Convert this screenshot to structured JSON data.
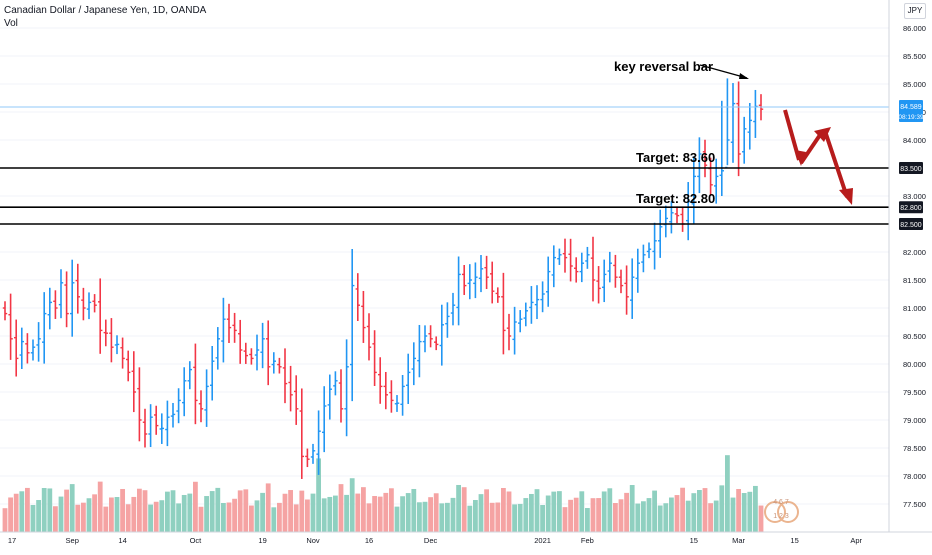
{
  "header": {
    "title": "Canadian Dollar / Japanese Yen, 1D, OANDA",
    "volume_label": "Vol",
    "currency_badge": "JPY"
  },
  "annotations": {
    "reversal_text": "key reversal bar",
    "target1_text": "Target: 83.60",
    "target2_text": "Target: 82.80"
  },
  "price_tag": {
    "price": "84.589",
    "countdown": "08:19:39"
  },
  "levels": [
    {
      "price": "83.500",
      "value": 83.5
    },
    {
      "price": "82.800",
      "value": 82.8
    },
    {
      "price": "82.500",
      "value": 82.5
    }
  ],
  "watermark": "4 6 7 1 2 3",
  "colors": {
    "up": "#2196f3",
    "down": "#f23645",
    "vol_up": "#8fd0c0",
    "vol_down": "#f5a3a3",
    "arrow": "#b71c1c",
    "level_line": "#000000",
    "last_price_line": "#90caf9"
  },
  "chart_data": {
    "type": "ohlc",
    "title": "Canadian Dollar / Japanese Yen, 1D, OANDA",
    "y_ticks": [
      77.5,
      78.0,
      78.5,
      79.0,
      79.5,
      80.0,
      80.5,
      81.0,
      81.5,
      82.0,
      82.5,
      83.0,
      83.5,
      84.0,
      84.5,
      85.0,
      85.5,
      86.0
    ],
    "y_tick_labels": [
      "77.500",
      "78.000",
      "78.500",
      "79.000",
      "79.500",
      "80.000",
      "80.500",
      "81.000",
      "81.500",
      "82.000",
      "82.500",
      "83.000",
      "83.500",
      "84.000",
      "84.500",
      "85.000",
      "85.500",
      "86.000"
    ],
    "ylim": [
      77.2,
      86.2
    ],
    "x_tick_labels": [
      "17",
      "Sep",
      "14",
      "Oct",
      "19",
      "Nov",
      "16",
      "Dec",
      "2021",
      "Feb",
      "15",
      "Mar",
      "15",
      "Apr"
    ],
    "x_tick_bars": [
      0,
      12,
      21,
      34,
      46,
      55,
      65,
      76,
      96,
      104,
      123,
      131,
      141,
      152
    ],
    "bar_count": 136,
    "prices": [
      80.9,
      80.45,
      80.1,
      80.4,
      80.2,
      80.3,
      80.45,
      80.9,
      81.1,
      81.0,
      81.45,
      80.9,
      81.45,
      81.2,
      81.0,
      81.1,
      81.05,
      80.6,
      80.55,
      80.3,
      80.35,
      80.1,
      79.85,
      79.5,
      79.0,
      78.75,
      79.05,
      78.9,
      78.85,
      79.05,
      79.1,
      79.35,
      79.7,
      79.9,
      79.35,
      79.2,
      79.6,
      80.05,
      80.45,
      80.8,
      80.65,
      80.6,
      80.25,
      80.15,
      80.1,
      80.25,
      80.45,
      79.95,
      80.05,
      79.95,
      79.65,
      79.45,
      79.2,
      78.35,
      78.3,
      78.45,
      78.8,
      79.25,
      79.55,
      79.7,
      79.2,
      79.95,
      81.4,
      81.05,
      80.65,
      80.3,
      79.85,
      79.6,
      79.45,
      79.35,
      79.3,
      79.6,
      79.85,
      80.1,
      80.4,
      80.5,
      80.45,
      80.35,
      80.7,
      80.85,
      81.05,
      81.6,
      81.4,
      81.5,
      81.55,
      81.7,
      81.55,
      81.3,
      81.2,
      80.6,
      80.5,
      80.75,
      80.8,
      80.95,
      81.1,
      81.15,
      81.25,
      81.65,
      81.9,
      81.95,
      81.9,
      81.75,
      81.65,
      81.8,
      81.95,
      81.5,
      81.35,
      81.6,
      81.8,
      81.55,
      81.4,
      81.2,
      81.55,
      81.8,
      81.95,
      82.05,
      82.2,
      82.45,
      82.6,
      82.7,
      82.65,
      82.5,
      82.9,
      83.35,
      83.75,
      83.55,
      83.2,
      83.35,
      83.45,
      84.0,
      84.65,
      83.75,
      84.2,
      84.35,
      84.6,
      84.55
    ],
    "last_price": 84.589,
    "series": [
      {
        "name": "Vol"
      }
    ]
  }
}
